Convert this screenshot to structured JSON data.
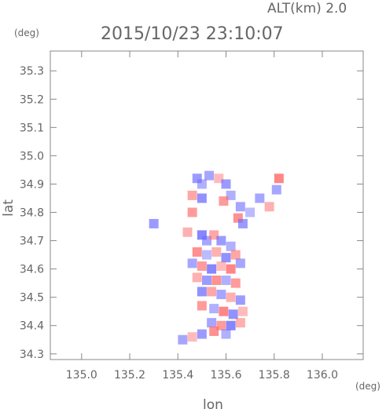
{
  "header": {
    "altitude_label": "ALT(km) 2.0",
    "timestamp": "2015/10/23 23:10:07"
  },
  "chart_data": {
    "type": "heatmap",
    "title": "2015/10/23 23:10:07",
    "xlabel": "lon",
    "ylabel": "lat",
    "x_unit": "(deg)",
    "y_unit": "(deg)",
    "xlim": [
      134.87,
      136.17
    ],
    "ylim": [
      34.28,
      35.37
    ],
    "x_ticks": [
      135.0,
      135.2,
      135.4,
      135.6,
      135.8,
      136.0
    ],
    "x_tick_labels": [
      "135.0",
      "135.2",
      "135.4",
      "135.6",
      "135.8",
      "136.0"
    ],
    "y_ticks": [
      34.3,
      34.4,
      34.5,
      34.6,
      34.7,
      34.8,
      34.9,
      35.0,
      35.1,
      35.2,
      35.3
    ],
    "y_tick_labels": [
      "34.3",
      "34.4",
      "34.5",
      "34.6",
      "34.7",
      "34.8",
      "34.9",
      "35.0",
      "35.1",
      "35.2",
      "35.3"
    ],
    "grid": false,
    "colors": {
      "positive": "#ff6a6a",
      "negative": "#6a6aff",
      "neutral": "#e8e0f0",
      "axis": "#888888"
    },
    "cells": [
      {
        "lon": 135.48,
        "lat": 34.92,
        "v": -0.6
      },
      {
        "lon": 135.5,
        "lat": 34.9,
        "v": -0.4
      },
      {
        "lon": 135.46,
        "lat": 34.86,
        "v": 0.5
      },
      {
        "lon": 135.5,
        "lat": 34.85,
        "v": -0.7
      },
      {
        "lon": 135.53,
        "lat": 34.93,
        "v": -0.5
      },
      {
        "lon": 135.57,
        "lat": 34.92,
        "v": 0.3
      },
      {
        "lon": 135.6,
        "lat": 34.9,
        "v": -0.6
      },
      {
        "lon": 135.62,
        "lat": 34.86,
        "v": -0.4
      },
      {
        "lon": 135.59,
        "lat": 34.84,
        "v": 0.6
      },
      {
        "lon": 135.66,
        "lat": 34.82,
        "v": -0.5
      },
      {
        "lon": 135.65,
        "lat": 34.78,
        "v": 0.7
      },
      {
        "lon": 135.67,
        "lat": 34.76,
        "v": -0.6
      },
      {
        "lon": 135.7,
        "lat": 34.8,
        "v": -0.3
      },
      {
        "lon": 135.74,
        "lat": 34.85,
        "v": -0.5
      },
      {
        "lon": 135.78,
        "lat": 34.82,
        "v": 0.4
      },
      {
        "lon": 135.82,
        "lat": 34.92,
        "v": 0.8
      },
      {
        "lon": 135.81,
        "lat": 34.88,
        "v": -0.5
      },
      {
        "lon": 135.3,
        "lat": 34.76,
        "v": -0.6
      },
      {
        "lon": 135.46,
        "lat": 34.8,
        "v": 0.6
      },
      {
        "lon": 135.44,
        "lat": 34.73,
        "v": 0.4
      },
      {
        "lon": 135.5,
        "lat": 34.72,
        "v": -0.8
      },
      {
        "lon": 135.52,
        "lat": 34.7,
        "v": -0.5
      },
      {
        "lon": 135.55,
        "lat": 34.72,
        "v": 0.5
      },
      {
        "lon": 135.58,
        "lat": 34.7,
        "v": -0.6
      },
      {
        "lon": 135.62,
        "lat": 34.68,
        "v": -0.4
      },
      {
        "lon": 135.48,
        "lat": 34.66,
        "v": 0.7
      },
      {
        "lon": 135.52,
        "lat": 34.65,
        "v": -0.3
      },
      {
        "lon": 135.56,
        "lat": 34.66,
        "v": 0.4
      },
      {
        "lon": 135.6,
        "lat": 34.64,
        "v": -0.7
      },
      {
        "lon": 135.64,
        "lat": 34.65,
        "v": 0.5
      },
      {
        "lon": 135.46,
        "lat": 34.62,
        "v": -0.5
      },
      {
        "lon": 135.5,
        "lat": 34.61,
        "v": 0.6
      },
      {
        "lon": 135.54,
        "lat": 34.6,
        "v": -0.8
      },
      {
        "lon": 135.58,
        "lat": 34.61,
        "v": 0.3
      },
      {
        "lon": 135.62,
        "lat": 34.6,
        "v": 0.8
      },
      {
        "lon": 135.66,
        "lat": 34.62,
        "v": -0.5
      },
      {
        "lon": 135.48,
        "lat": 34.57,
        "v": 0.4
      },
      {
        "lon": 135.52,
        "lat": 34.56,
        "v": -0.6
      },
      {
        "lon": 135.56,
        "lat": 34.56,
        "v": 0.7
      },
      {
        "lon": 135.6,
        "lat": 34.56,
        "v": -0.4
      },
      {
        "lon": 135.64,
        "lat": 34.55,
        "v": 0.6
      },
      {
        "lon": 135.5,
        "lat": 34.52,
        "v": -0.7
      },
      {
        "lon": 135.54,
        "lat": 34.52,
        "v": 0.5
      },
      {
        "lon": 135.58,
        "lat": 34.51,
        "v": -0.5
      },
      {
        "lon": 135.62,
        "lat": 34.5,
        "v": 0.4
      },
      {
        "lon": 135.66,
        "lat": 34.49,
        "v": -0.6
      },
      {
        "lon": 135.5,
        "lat": 34.47,
        "v": 0.6
      },
      {
        "lon": 135.55,
        "lat": 34.46,
        "v": -0.4
      },
      {
        "lon": 135.59,
        "lat": 34.45,
        "v": 0.8
      },
      {
        "lon": 135.63,
        "lat": 34.44,
        "v": -0.7
      },
      {
        "lon": 135.67,
        "lat": 34.45,
        "v": 0.3
      },
      {
        "lon": 135.54,
        "lat": 34.41,
        "v": -0.5
      },
      {
        "lon": 135.58,
        "lat": 34.4,
        "v": 0.6
      },
      {
        "lon": 135.62,
        "lat": 34.4,
        "v": -0.8
      },
      {
        "lon": 135.66,
        "lat": 34.41,
        "v": 0.4
      },
      {
        "lon": 135.6,
        "lat": 34.37,
        "v": -0.4
      },
      {
        "lon": 135.55,
        "lat": 34.38,
        "v": 0.7
      },
      {
        "lon": 135.5,
        "lat": 34.37,
        "v": -0.6
      },
      {
        "lon": 135.46,
        "lat": 34.36,
        "v": 0.3
      },
      {
        "lon": 135.42,
        "lat": 34.35,
        "v": -0.5
      }
    ]
  }
}
